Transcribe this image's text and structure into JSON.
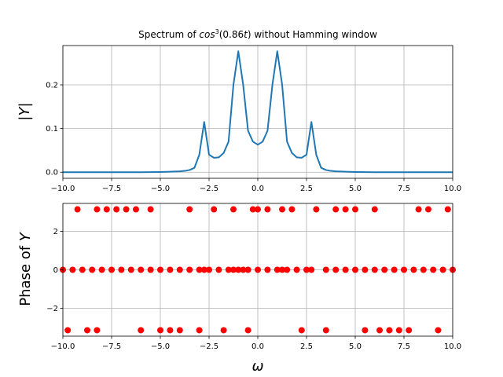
{
  "chart_data": [
    {
      "type": "line",
      "title": "Spectrum of cos³(0.86t) without Hamming window",
      "title_parts": {
        "prefix": "Spectrum of ",
        "func": "cos",
        "power": "3",
        "arg": "(0.86",
        "var": "t",
        "suffix": ") without Hamming window"
      },
      "xlabel": "",
      "ylabel": "|Y|",
      "xlim": [
        -10,
        10
      ],
      "ylim": [
        -0.014,
        0.29
      ],
      "xticks": [
        -10,
        -7.5,
        -5,
        -2.5,
        0,
        2.5,
        5,
        7.5,
        10
      ],
      "xtick_labels": [
        "−10.0",
        "−7.5",
        "−5.0",
        "−2.5",
        "0.0",
        "2.5",
        "5.0",
        "7.5",
        "10.0"
      ],
      "yticks": [
        0,
        0.1,
        0.2
      ],
      "ytick_labels": [
        "0.0",
        "0.1",
        "0.2"
      ],
      "grid": true,
      "color": "#1f77b4",
      "series": [
        {
          "x": [
            -10,
            -9,
            -8,
            -7,
            -6,
            -5,
            -4.5,
            -4,
            -3.75,
            -3.5,
            -3.25,
            -3.0,
            -2.75,
            -2.5,
            -2.25,
            -2.0,
            -1.75,
            -1.5,
            -1.25,
            -1.0,
            -0.75,
            -0.5,
            -0.25,
            0,
            0.25,
            0.5,
            0.75,
            1.0,
            1.25,
            1.5,
            1.75,
            2.0,
            2.25,
            2.5,
            2.75,
            3.0,
            3.25,
            3.5,
            3.75,
            4.0,
            4.5,
            5,
            6,
            7,
            8,
            9,
            10
          ],
          "y": [
            0.0,
            0.0,
            0.0,
            0.0,
            0.0,
            0.0005,
            0.001,
            0.002,
            0.003,
            0.005,
            0.01,
            0.04,
            0.115,
            0.04,
            0.033,
            0.034,
            0.044,
            0.07,
            0.2,
            0.277,
            0.2,
            0.095,
            0.07,
            0.063,
            0.07,
            0.095,
            0.2,
            0.277,
            0.2,
            0.07,
            0.044,
            0.034,
            0.033,
            0.04,
            0.115,
            0.04,
            0.01,
            0.005,
            0.003,
            0.002,
            0.001,
            0.0005,
            0.0,
            0.0,
            0.0,
            0.0,
            0.0
          ]
        }
      ]
    },
    {
      "type": "scatter",
      "title": "",
      "xlabel": "ω",
      "ylabel": "Phase of Y",
      "ylabel_parts": {
        "prefix": "Phase of ",
        "var": "Y"
      },
      "xlim": [
        -10,
        10
      ],
      "ylim": [
        -3.45,
        3.45
      ],
      "xticks": [
        -10,
        -7.5,
        -5,
        -2.5,
        0,
        2.5,
        5,
        7.5,
        10
      ],
      "xtick_labels": [
        "−10.0",
        "−7.5",
        "−5.0",
        "−2.5",
        "0.0",
        "2.5",
        "5.0",
        "7.5",
        "10.0"
      ],
      "yticks": [
        -2,
        0,
        2
      ],
      "ytick_labels": [
        "−2",
        "0",
        "2"
      ],
      "grid": true,
      "color": "#ff0000",
      "series": [
        {
          "x": [
            -10,
            -9.5,
            -9,
            -8.5,
            -8,
            -7.5,
            -7,
            -6.5,
            -6,
            -5.5,
            -5,
            -4.5,
            -4,
            -3.5,
            -3,
            -2.75,
            -2.5,
            -2,
            -1.5,
            -1.25,
            -1,
            -0.75,
            -0.5,
            0,
            0.5,
            1,
            1.25,
            1.5,
            2,
            2.5,
            2.75,
            3.5,
            4,
            4.5,
            5,
            5.5,
            6,
            6.5,
            7,
            7.5,
            8,
            8.5,
            9,
            9.5,
            10
          ],
          "y": [
            0,
            0,
            0,
            0,
            0,
            0,
            0,
            0,
            0,
            0,
            0,
            0,
            0,
            0,
            0,
            0,
            0,
            0,
            0,
            0,
            0,
            0,
            0,
            0,
            0,
            0,
            0,
            0,
            0,
            0,
            0,
            0,
            0,
            0,
            0,
            0,
            0,
            0,
            0,
            0,
            0,
            0,
            0,
            0,
            0
          ]
        },
        {
          "x": [
            -9.25,
            -8.25,
            -7.75,
            -7.25,
            -6.75,
            -6.25,
            -5.5,
            -3.5,
            -2.25,
            -1.25,
            -0.25,
            0.0,
            0.5,
            1.25,
            1.75,
            3.0,
            4.0,
            4.5,
            5.0,
            6.0,
            8.25,
            8.75,
            9.75
          ],
          "y": [
            3.14159,
            3.14159,
            3.14159,
            3.14159,
            3.14159,
            3.14159,
            3.14159,
            3.14159,
            3.14159,
            3.14159,
            3.14159,
            3.14159,
            3.14159,
            3.14159,
            3.14159,
            3.14159,
            3.14159,
            3.14159,
            3.14159,
            3.14159,
            3.14159,
            3.14159,
            3.14159
          ]
        },
        {
          "x": [
            -9.75,
            -8.75,
            -8.25,
            -6.0,
            -5.0,
            -4.5,
            -4.0,
            -3.0,
            -1.75,
            -0.5,
            2.25,
            3.5,
            5.5,
            6.25,
            6.75,
            7.25,
            7.75,
            9.25
          ],
          "y": [
            -3.14159,
            -3.14159,
            -3.14159,
            -3.14159,
            -3.14159,
            -3.14159,
            -3.14159,
            -3.14159,
            -3.14159,
            -3.14159,
            -3.14159,
            -3.14159,
            -3.14159,
            -3.14159,
            -3.14159,
            -3.14159,
            -3.14159,
            -3.14159
          ]
        }
      ]
    }
  ]
}
